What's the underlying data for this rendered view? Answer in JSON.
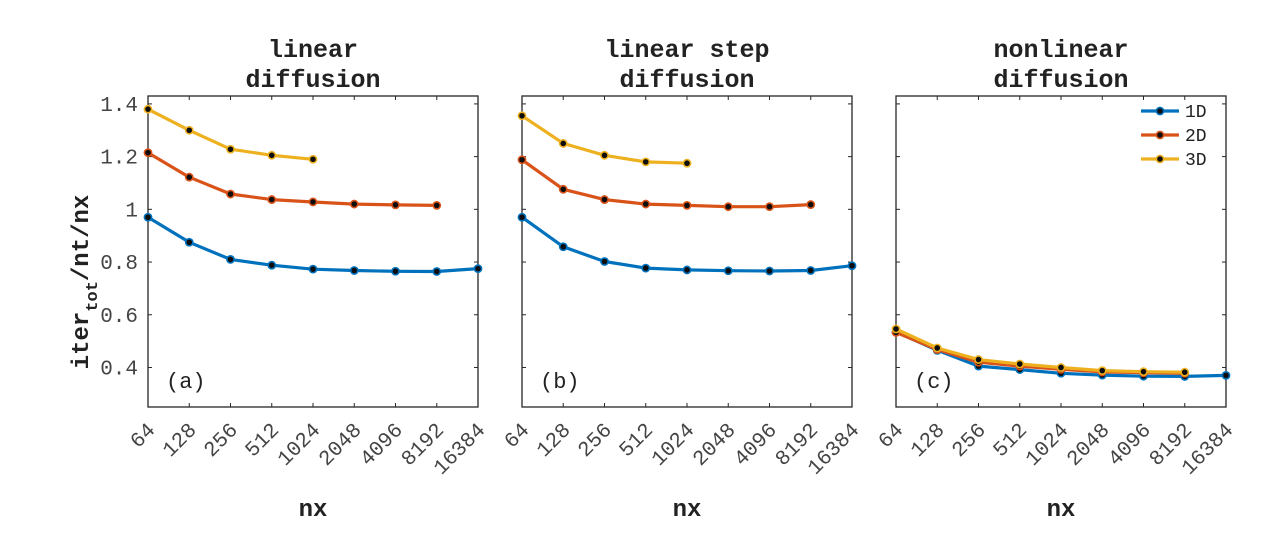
{
  "figure": {
    "ylabel": {
      "main": "iter",
      "sub": "tot",
      "rest": "/nt/nx"
    },
    "legend": [
      "1D",
      "2D",
      "3D"
    ]
  },
  "colors": {
    "1D": "#0072BD",
    "2D": "#D95319",
    "3D": "#EDB120",
    "marker": "#0d0d0d"
  },
  "chart_data": [
    {
      "type": "line",
      "title": [
        "linear",
        "diffusion"
      ],
      "panel_label": "(a)",
      "xlabel": "nx",
      "x_scale": "log2",
      "x_ticks": [
        64,
        128,
        256,
        512,
        1024,
        2048,
        4096,
        8192,
        16384
      ],
      "y_ticks": [
        0.4,
        0.6,
        0.8,
        1,
        1.2,
        1.4
      ],
      "y_tick_labels": [
        "0.4",
        "0.6",
        "0.8",
        "1",
        "1.2",
        "1.4"
      ],
      "ylim": [
        0.25,
        1.43
      ],
      "legend": false,
      "series": [
        {
          "name": "1D",
          "x": [
            64,
            128,
            256,
            512,
            1024,
            2048,
            4096,
            8192,
            16384
          ],
          "y": [
            0.97,
            0.875,
            0.81,
            0.788,
            0.773,
            0.768,
            0.765,
            0.764,
            0.775
          ]
        },
        {
          "name": "2D",
          "x": [
            64,
            128,
            256,
            512,
            1024,
            2048,
            4096,
            8192
          ],
          "y": [
            1.215,
            1.122,
            1.058,
            1.037,
            1.028,
            1.02,
            1.017,
            1.015
          ]
        },
        {
          "name": "3D",
          "x": [
            64,
            128,
            256,
            512,
            1024
          ],
          "y": [
            1.38,
            1.3,
            1.228,
            1.205,
            1.19
          ]
        }
      ]
    },
    {
      "type": "line",
      "title": [
        "linear step",
        "diffusion"
      ],
      "panel_label": "(b)",
      "xlabel": "nx",
      "x_scale": "log2",
      "x_ticks": [
        64,
        128,
        256,
        512,
        1024,
        2048,
        4096,
        8192,
        16384
      ],
      "ylim": [
        0.25,
        1.43
      ],
      "legend": false,
      "series": [
        {
          "name": "1D",
          "x": [
            64,
            128,
            256,
            512,
            1024,
            2048,
            4096,
            8192,
            16384
          ],
          "y": [
            0.97,
            0.858,
            0.802,
            0.777,
            0.77,
            0.767,
            0.766,
            0.768,
            0.786
          ]
        },
        {
          "name": "2D",
          "x": [
            64,
            128,
            256,
            512,
            1024,
            2048,
            4096,
            8192
          ],
          "y": [
            1.188,
            1.076,
            1.037,
            1.02,
            1.015,
            1.01,
            1.01,
            1.018
          ]
        },
        {
          "name": "3D",
          "x": [
            64,
            128,
            256,
            512,
            1024
          ],
          "y": [
            1.355,
            1.25,
            1.205,
            1.18,
            1.175
          ]
        }
      ]
    },
    {
      "type": "line",
      "title": [
        "nonlinear",
        "diffusion"
      ],
      "panel_label": "(c)",
      "xlabel": "nx",
      "x_scale": "log2",
      "x_ticks": [
        64,
        128,
        256,
        512,
        1024,
        2048,
        4096,
        8192,
        16384
      ],
      "ylim": [
        0.25,
        1.43
      ],
      "legend": true,
      "legend_location": "top-right",
      "series": [
        {
          "name": "1D",
          "x": [
            64,
            128,
            256,
            512,
            1024,
            2048,
            4096,
            8192,
            16384
          ],
          "y": [
            0.535,
            0.465,
            0.405,
            0.392,
            0.378,
            0.371,
            0.367,
            0.366,
            0.37
          ]
        },
        {
          "name": "2D",
          "x": [
            64,
            128,
            256,
            512,
            1024,
            2048,
            4096,
            8192
          ],
          "y": [
            0.533,
            0.468,
            0.42,
            0.405,
            0.393,
            0.383,
            0.38,
            0.378
          ]
        },
        {
          "name": "3D",
          "x": [
            64,
            128,
            256,
            512,
            1024,
            2048,
            4096,
            8192
          ],
          "y": [
            0.546,
            0.474,
            0.43,
            0.413,
            0.4,
            0.388,
            0.384,
            0.382
          ]
        }
      ]
    }
  ]
}
